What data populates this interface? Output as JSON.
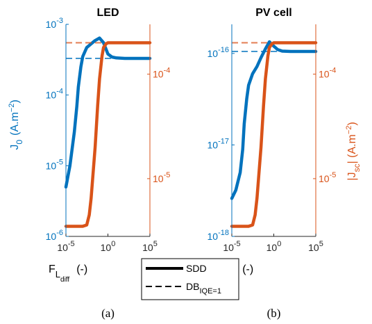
{
  "colors": {
    "left": "#0072BD",
    "right": "#D95319",
    "axis": "#262626"
  },
  "legend": [
    {
      "label": "SDD",
      "style": "solid"
    },
    {
      "label": "DB",
      "sub": "IQE=1",
      "style": "dashed"
    }
  ],
  "chart_data": [
    {
      "type": "line",
      "title": "LED",
      "caption": "(a)",
      "x_scale": "log",
      "xlim": [
        1e-05,
        100000.0
      ],
      "x_ticks": [
        {
          "v": 1e-05,
          "base": "10",
          "exp": "-5"
        },
        {
          "v": 1,
          "base": "10",
          "exp": "0"
        },
        {
          "v": 100000.0,
          "base": "10",
          "exp": "5"
        }
      ],
      "xlabel": {
        "main": "F",
        "sub": "L",
        "subsub": "diff",
        "unit": "(-)"
      },
      "left_axis": {
        "scale": "log",
        "ylim": [
          1e-06,
          0.001
        ],
        "ticks": [
          {
            "v": 1e-06,
            "base": "10",
            "exp": "-6"
          },
          {
            "v": 1e-05,
            "base": "10",
            "exp": "-5"
          },
          {
            "v": 0.0001,
            "base": "10",
            "exp": "-4"
          },
          {
            "v": 0.001,
            "base": "10",
            "exp": "-3"
          }
        ],
        "label": {
          "main": "J",
          "sub": "0",
          "unit": "(A.m",
          "unit_exp": "−2",
          "unit_end": ")"
        }
      },
      "right_axis": {
        "scale": "log",
        "ylim": [
          2.8e-06,
          0.0003
        ],
        "ticks": [
          {
            "v": 1e-05,
            "base": "10",
            "exp": "-5"
          },
          {
            "v": 0.0001,
            "base": "10",
            "exp": "-4"
          }
        ],
        "label": null
      },
      "series": [
        {
          "axis": "left",
          "style": "solid",
          "x": [
            1e-05,
            3e-05,
            0.0001,
            0.0002,
            0.0003,
            0.0006,
            0.001,
            0.003,
            0.01,
            0.03,
            0.1,
            0.3,
            1,
            3,
            10,
            100,
            1000.0,
            10000.0,
            100000.0
          ],
          "y": [
            5e-06,
            1e-05,
            3e-05,
            7e-05,
            0.00013,
            0.00025,
            0.00035,
            0.00047,
            0.00053,
            0.00059,
            0.00064,
            0.00055,
            0.00038,
            0.000345,
            0.000335,
            0.00033,
            0.00033,
            0.00033,
            0.00033
          ]
        },
        {
          "axis": "left",
          "style": "dashed",
          "x": [
            1e-05,
            100000.0
          ],
          "y": [
            0.00033,
            0.00033
          ]
        },
        {
          "axis": "right",
          "style": "solid",
          "x": [
            1e-05,
            0.0001,
            0.001,
            0.003,
            0.006,
            0.01,
            0.03,
            0.06,
            0.1,
            0.2,
            0.3,
            0.6,
            1,
            3,
            10,
            100,
            1000.0,
            10000.0,
            100000.0
          ],
          "y": [
            3.5e-06,
            3.5e-06,
            3.5e-06,
            3.6e-06,
            4.5e-06,
            6.5e-06,
            2e-05,
            5e-05,
            9e-05,
            0.00015,
            0.00018,
            0.000195,
            0.0002,
            0.0002,
            0.0002,
            0.0002,
            0.0002,
            0.0002,
            0.0002
          ]
        },
        {
          "axis": "right",
          "style": "dashed",
          "x": [
            1e-05,
            100000.0
          ],
          "y": [
            0.0002,
            0.0002
          ]
        }
      ]
    },
    {
      "type": "line",
      "title": "PV cell",
      "caption": "(b)",
      "x_scale": "log",
      "xlim": [
        1e-05,
        100000.0
      ],
      "x_ticks": [
        {
          "v": 1e-05,
          "base": "10",
          "exp": "-5"
        },
        {
          "v": 1,
          "base": "10",
          "exp": "0"
        },
        {
          "v": 100000.0,
          "base": "10",
          "exp": "5"
        }
      ],
      "xlabel": {
        "main": "F",
        "sub": "L",
        "subsub": "diff",
        "unit": "(-)"
      },
      "left_axis": {
        "scale": "log",
        "ylim": [
          1e-18,
          2.08e-16
        ],
        "ticks": [
          {
            "v": 1e-18,
            "base": "10",
            "exp": "-18"
          },
          {
            "v": 1e-17,
            "base": "10",
            "exp": "-17"
          },
          {
            "v": 1e-16,
            "base": "10",
            "exp": "-16"
          }
        ],
        "label": null
      },
      "right_axis": {
        "scale": "log",
        "ylim": [
          2.8e-06,
          0.0003
        ],
        "ticks": [
          {
            "v": 1e-05,
            "base": "10",
            "exp": "-5"
          },
          {
            "v": 0.0001,
            "base": "10",
            "exp": "-4"
          }
        ],
        "label": {
          "pre": "|J",
          "sub": "sc",
          "post": "| (A.m",
          "unit_exp": "−2",
          "unit_end": ")"
        }
      },
      "series": [
        {
          "axis": "left",
          "style": "solid",
          "x": [
            1e-05,
            3e-05,
            0.0001,
            0.0002,
            0.0003,
            0.0006,
            0.001,
            0.003,
            0.01,
            0.03,
            0.1,
            0.3,
            1,
            3,
            10,
            100,
            1000.0,
            10000.0,
            100000.0
          ],
          "y": [
            2.6e-18,
            3.2e-18,
            5e-18,
            9e-18,
            1.7e-17,
            3.2e-17,
            4.5e-17,
            6e-17,
            7.2e-17,
            9e-17,
            1.12e-16,
            1.34e-16,
            1.2e-16,
            1.1e-16,
            1.06e-16,
            1.05e-16,
            1.05e-16,
            1.05e-16,
            1.05e-16
          ]
        },
        {
          "axis": "left",
          "style": "dashed",
          "x": [
            1e-05,
            100000.0
          ],
          "y": [
            1.05e-16,
            1.05e-16
          ]
        },
        {
          "axis": "right",
          "style": "solid",
          "x": [
            1e-05,
            0.0001,
            0.001,
            0.003,
            0.006,
            0.01,
            0.03,
            0.06,
            0.1,
            0.2,
            0.3,
            0.6,
            1,
            3,
            10,
            100,
            1000.0,
            10000.0,
            100000.0
          ],
          "y": [
            3.5e-06,
            3.5e-06,
            3.5e-06,
            3.6e-06,
            4.5e-06,
            6.5e-06,
            2e-05,
            5e-05,
            9e-05,
            0.00015,
            0.00018,
            0.000195,
            0.0002,
            0.0002,
            0.0002,
            0.0002,
            0.0002,
            0.0002,
            0.0002
          ]
        },
        {
          "axis": "right",
          "style": "dashed",
          "x": [
            1e-05,
            100000.0
          ],
          "y": [
            0.0002,
            0.0002
          ]
        }
      ]
    }
  ]
}
